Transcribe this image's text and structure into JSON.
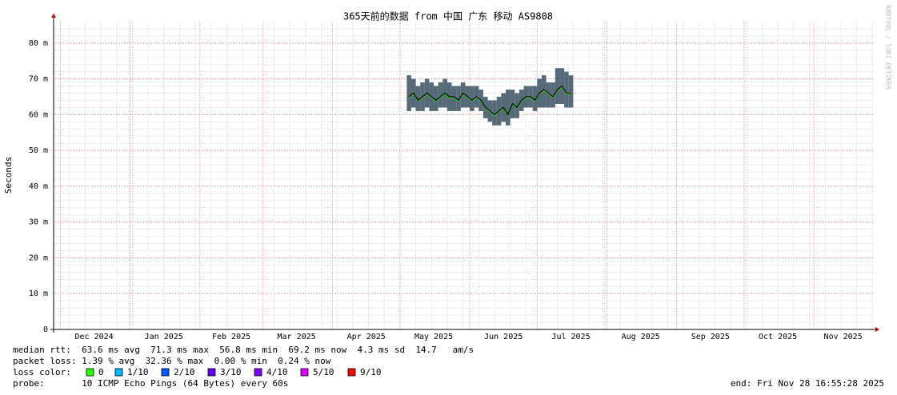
{
  "chart_data": {
    "type": "smoke",
    "title": "365天前的数据 from 中国 广东 移动 AS9808",
    "y_label": "Seconds",
    "side_note": "RRDTOOL / TOBI OETIKER",
    "xlim": [
      0,
      365
    ],
    "xticks": [
      {
        "value": 18,
        "label": "Dec 2024"
      },
      {
        "value": 49,
        "label": "Jan 2025"
      },
      {
        "value": 79,
        "label": "Feb 2025"
      },
      {
        "value": 108,
        "label": "Mar 2025"
      },
      {
        "value": 139,
        "label": "Apr 2025"
      },
      {
        "value": 169,
        "label": "May 2025"
      },
      {
        "value": 200,
        "label": "Jun 2025"
      },
      {
        "value": 230,
        "label": "Jul 2025"
      },
      {
        "value": 261,
        "label": "Aug 2025"
      },
      {
        "value": 292,
        "label": "Sep 2025"
      },
      {
        "value": 322,
        "label": "Oct 2025"
      },
      {
        "value": 351,
        "label": "Nov 2025"
      }
    ],
    "x_major_grid": [
      3,
      34,
      65,
      93,
      124,
      154,
      185,
      215,
      246,
      277,
      307,
      338
    ],
    "x_minor_step": 7,
    "ylim": [
      0,
      86
    ],
    "yticks": [
      0,
      {
        "value": 10,
        "label": "10 m"
      },
      {
        "value": 20,
        "label": "20 m"
      },
      {
        "value": 30,
        "label": "30 m"
      },
      {
        "value": 40,
        "label": "40 m"
      },
      {
        "value": 50,
        "label": "50 m"
      },
      {
        "value": 60,
        "label": "60 m"
      },
      {
        "value": 70,
        "label": "70 m"
      },
      {
        "value": 80,
        "label": "80 m"
      }
    ],
    "y_minor_step": 2,
    "grid": true,
    "x": [
      158,
      160,
      162,
      164,
      166,
      168,
      170,
      172,
      174,
      176,
      178,
      180,
      182,
      184,
      186,
      188,
      190,
      192,
      194,
      196,
      198,
      200,
      202,
      204,
      206,
      208,
      210,
      212,
      214,
      216,
      218,
      220,
      222,
      224,
      226,
      228,
      230
    ],
    "median": [
      65,
      66,
      64,
      65,
      66,
      65,
      64,
      65,
      66,
      65,
      65,
      64,
      66,
      65,
      64,
      65,
      64,
      62,
      61,
      60,
      61,
      62,
      60,
      63,
      62,
      64,
      65,
      65,
      64,
      66,
      67,
      66,
      65,
      67,
      68,
      66,
      66
    ],
    "low": [
      61,
      62,
      61,
      61,
      62,
      61,
      61,
      62,
      62,
      61,
      61,
      61,
      62,
      62,
      61,
      62,
      61,
      59,
      58,
      57,
      57,
      58,
      57,
      59,
      59,
      61,
      62,
      62,
      61,
      62,
      62,
      62,
      62,
      63,
      63,
      62,
      62
    ],
    "high": [
      71,
      70,
      68,
      69,
      70,
      69,
      68,
      69,
      70,
      69,
      68,
      68,
      69,
      68,
      68,
      68,
      67,
      65,
      64,
      64,
      65,
      66,
      67,
      67,
      66,
      67,
      68,
      68,
      68,
      70,
      71,
      69,
      69,
      73,
      73,
      72,
      71
    ],
    "line_color": "#000000",
    "smoke_color": "#3a5060",
    "loss_line_color": "#26ff00",
    "stats": [
      "median rtt:  63.6 ms avg  71.3 ms max  56.8 ms min  69.2 ms now  4.3 ms sd  14.7   am/s",
      "packet loss: 1.39 % avg  32.36 % max  0.00 % min  0.24 % now"
    ],
    "loss_title": "loss color:",
    "loss_colors": [
      {
        "label": "0",
        "color": "#26ff00"
      },
      {
        "label": "1/10",
        "color": "#00b8ff"
      },
      {
        "label": "2/10",
        "color": "#0059ff"
      },
      {
        "label": "3/10",
        "color": "#5e00ff"
      },
      {
        "label": "4/10",
        "color": "#7e00ff"
      },
      {
        "label": "5/10",
        "color": "#dd00ff"
      },
      {
        "label": "9/10",
        "color": "#ff0000"
      }
    ],
    "probe": "probe:       10 ICMP Echo Pings (64 Bytes) every 60s",
    "end": "end: Fri Nov 28 16:55:28 2025"
  }
}
